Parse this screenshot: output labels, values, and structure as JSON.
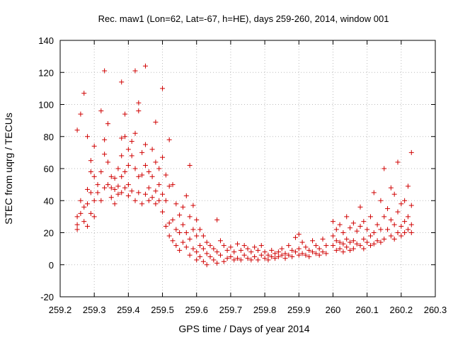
{
  "chart_data": {
    "type": "scatter",
    "title": "Rec. maw1 (Lon=62, Lat=-67, h=HE), days 259-260, 2014, window 001",
    "xlabel": "GPS time / Days of year 2014",
    "ylabel": "STEC from uqrg / TECUs",
    "xlim": [
      259.2,
      260.3
    ],
    "ylim": [
      -20,
      140
    ],
    "xticks": [
      "259.2",
      "259.3",
      "259.4",
      "259.5",
      "259.6",
      "259.7",
      "259.8",
      "259.9",
      "260",
      "260.1",
      "260.2",
      "260.3"
    ],
    "yticks": [
      "-20",
      "0",
      "20",
      "40",
      "60",
      "80",
      "100",
      "120",
      "140"
    ],
    "grid": true,
    "marker": "plus",
    "color": "#d00000",
    "series": [
      {
        "points": [
          [
            259.25,
            84
          ],
          [
            259.25,
            30
          ],
          [
            259.25,
            25
          ],
          [
            259.25,
            22
          ],
          [
            259.26,
            32
          ],
          [
            259.26,
            40
          ],
          [
            259.26,
            94
          ],
          [
            259.27,
            107
          ],
          [
            259.27,
            27
          ],
          [
            259.27,
            36
          ],
          [
            259.28,
            80
          ],
          [
            259.28,
            47
          ],
          [
            259.28,
            38
          ],
          [
            259.28,
            24
          ],
          [
            259.29,
            65
          ],
          [
            259.29,
            58
          ],
          [
            259.29,
            45
          ],
          [
            259.29,
            32
          ],
          [
            259.3,
            74
          ],
          [
            259.3,
            55
          ],
          [
            259.3,
            40
          ],
          [
            259.3,
            30
          ],
          [
            259.31,
            50
          ],
          [
            259.31,
            45
          ],
          [
            259.32,
            96
          ],
          [
            259.32,
            58
          ],
          [
            259.32,
            40
          ],
          [
            259.33,
            121
          ],
          [
            259.33,
            78
          ],
          [
            259.33,
            69
          ],
          [
            259.33,
            48
          ],
          [
            259.34,
            88
          ],
          [
            259.34,
            64
          ],
          [
            259.34,
            50
          ],
          [
            259.35,
            55
          ],
          [
            259.35,
            48
          ],
          [
            259.35,
            42
          ],
          [
            259.36,
            54
          ],
          [
            259.36,
            47
          ],
          [
            259.36,
            38
          ],
          [
            259.37,
            60
          ],
          [
            259.37,
            49
          ],
          [
            259.37,
            44
          ],
          [
            259.38,
            114
          ],
          [
            259.38,
            79
          ],
          [
            259.38,
            68
          ],
          [
            259.38,
            55
          ],
          [
            259.38,
            45
          ],
          [
            259.39,
            94
          ],
          [
            259.39,
            80
          ],
          [
            259.39,
            58
          ],
          [
            259.39,
            48
          ],
          [
            259.4,
            72
          ],
          [
            259.4,
            62
          ],
          [
            259.4,
            50
          ],
          [
            259.4,
            43
          ],
          [
            259.41,
            77
          ],
          [
            259.41,
            68
          ],
          [
            259.41,
            46
          ],
          [
            259.42,
            121
          ],
          [
            259.42,
            82
          ],
          [
            259.42,
            60
          ],
          [
            259.42,
            40
          ],
          [
            259.43,
            101
          ],
          [
            259.43,
            96
          ],
          [
            259.43,
            55
          ],
          [
            259.43,
            45
          ],
          [
            259.44,
            70
          ],
          [
            259.44,
            56
          ],
          [
            259.44,
            38
          ],
          [
            259.45,
            124
          ],
          [
            259.45,
            75
          ],
          [
            259.45,
            62
          ],
          [
            259.45,
            44
          ],
          [
            259.46,
            58
          ],
          [
            259.46,
            48
          ],
          [
            259.46,
            40
          ],
          [
            259.47,
            72
          ],
          [
            259.47,
            55
          ],
          [
            259.47,
            42
          ],
          [
            259.48,
            89
          ],
          [
            259.48,
            64
          ],
          [
            259.48,
            46
          ],
          [
            259.48,
            38
          ],
          [
            259.49,
            60
          ],
          [
            259.49,
            50
          ],
          [
            259.49,
            40
          ],
          [
            259.5,
            110
          ],
          [
            259.5,
            67
          ],
          [
            259.5,
            44
          ],
          [
            259.5,
            33
          ],
          [
            259.51,
            56
          ],
          [
            259.51,
            40
          ],
          [
            259.51,
            24
          ],
          [
            259.52,
            78
          ],
          [
            259.52,
            49
          ],
          [
            259.52,
            26
          ],
          [
            259.52,
            18
          ],
          [
            259.53,
            50
          ],
          [
            259.53,
            28
          ],
          [
            259.53,
            15
          ],
          [
            259.54,
            38
          ],
          [
            259.54,
            22
          ],
          [
            259.54,
            12
          ],
          [
            259.55,
            31
          ],
          [
            259.55,
            20
          ],
          [
            259.55,
            9
          ],
          [
            259.56,
            36
          ],
          [
            259.56,
            25
          ],
          [
            259.56,
            14
          ],
          [
            259.57,
            43
          ],
          [
            259.57,
            20
          ],
          [
            259.57,
            11
          ],
          [
            259.58,
            62
          ],
          [
            259.58,
            30
          ],
          [
            259.58,
            16
          ],
          [
            259.58,
            6
          ],
          [
            259.59,
            37
          ],
          [
            259.59,
            22
          ],
          [
            259.59,
            10
          ],
          [
            259.6,
            28
          ],
          [
            259.6,
            18
          ],
          [
            259.6,
            8
          ],
          [
            259.6,
            3
          ],
          [
            259.61,
            22
          ],
          [
            259.61,
            12
          ],
          [
            259.61,
            5
          ],
          [
            259.62,
            18
          ],
          [
            259.62,
            10
          ],
          [
            259.62,
            2
          ],
          [
            259.63,
            14
          ],
          [
            259.63,
            7
          ],
          [
            259.63,
            0
          ],
          [
            259.64,
            12
          ],
          [
            259.64,
            5
          ],
          [
            259.65,
            10
          ],
          [
            259.65,
            3
          ],
          [
            259.66,
            28
          ],
          [
            259.66,
            8
          ],
          [
            259.66,
            1
          ],
          [
            259.67,
            15
          ],
          [
            259.67,
            6
          ],
          [
            259.68,
            12
          ],
          [
            259.68,
            2
          ],
          [
            259.69,
            9
          ],
          [
            259.69,
            4
          ],
          [
            259.7,
            11
          ],
          [
            259.7,
            5
          ],
          [
            259.71,
            8
          ],
          [
            259.71,
            3
          ],
          [
            259.72,
            13
          ],
          [
            259.72,
            4
          ],
          [
            259.73,
            9
          ],
          [
            259.73,
            3
          ],
          [
            259.74,
            12
          ],
          [
            259.74,
            6
          ],
          [
            259.75,
            10
          ],
          [
            259.75,
            4
          ],
          [
            259.76,
            8
          ],
          [
            259.76,
            3
          ],
          [
            259.77,
            11
          ],
          [
            259.77,
            5
          ],
          [
            259.78,
            9
          ],
          [
            259.78,
            3
          ],
          [
            259.79,
            12
          ],
          [
            259.79,
            6
          ],
          [
            259.8,
            8
          ],
          [
            259.8,
            4
          ],
          [
            259.81,
            6
          ],
          [
            259.81,
            3
          ],
          [
            259.82,
            9
          ],
          [
            259.82,
            5
          ],
          [
            259.83,
            7
          ],
          [
            259.83,
            4
          ],
          [
            259.84,
            8
          ],
          [
            259.84,
            5
          ],
          [
            259.85,
            10
          ],
          [
            259.85,
            6
          ],
          [
            259.86,
            7
          ],
          [
            259.86,
            4
          ],
          [
            259.87,
            12
          ],
          [
            259.87,
            6
          ],
          [
            259.88,
            9
          ],
          [
            259.88,
            5
          ],
          [
            259.89,
            17
          ],
          [
            259.89,
            8
          ],
          [
            259.9,
            19
          ],
          [
            259.9,
            10
          ],
          [
            259.9,
            6
          ],
          [
            259.91,
            14
          ],
          [
            259.91,
            7
          ],
          [
            259.92,
            11
          ],
          [
            259.92,
            6
          ],
          [
            259.93,
            9
          ],
          [
            259.93,
            5
          ],
          [
            259.94,
            15
          ],
          [
            259.94,
            8
          ],
          [
            259.95,
            12
          ],
          [
            259.95,
            7
          ],
          [
            259.96,
            10
          ],
          [
            259.96,
            6
          ],
          [
            259.97,
            16
          ],
          [
            259.97,
            8
          ],
          [
            259.98,
            12
          ],
          [
            259.98,
            7
          ],
          [
            260.0,
            27
          ],
          [
            260.0,
            18
          ],
          [
            260.0,
            12
          ],
          [
            260.01,
            22
          ],
          [
            260.01,
            15
          ],
          [
            260.01,
            9
          ],
          [
            260.02,
            25
          ],
          [
            260.02,
            14
          ],
          [
            260.02,
            10
          ],
          [
            260.03,
            20
          ],
          [
            260.03,
            13
          ],
          [
            260.03,
            8
          ],
          [
            260.04,
            30
          ],
          [
            260.04,
            16
          ],
          [
            260.04,
            11
          ],
          [
            260.05,
            23
          ],
          [
            260.05,
            14
          ],
          [
            260.05,
            9
          ],
          [
            260.06,
            26
          ],
          [
            260.06,
            15
          ],
          [
            260.06,
            10
          ],
          [
            260.07,
            21
          ],
          [
            260.07,
            13
          ],
          [
            260.08,
            36
          ],
          [
            260.08,
            24
          ],
          [
            260.08,
            12
          ],
          [
            260.09,
            27
          ],
          [
            260.09,
            16
          ],
          [
            260.09,
            10
          ],
          [
            260.1,
            22
          ],
          [
            260.1,
            14
          ],
          [
            260.11,
            30
          ],
          [
            260.11,
            18
          ],
          [
            260.11,
            12
          ],
          [
            260.12,
            45
          ],
          [
            260.12,
            20
          ],
          [
            260.12,
            13
          ],
          [
            260.13,
            25
          ],
          [
            260.13,
            15
          ],
          [
            260.14,
            40
          ],
          [
            260.14,
            22
          ],
          [
            260.14,
            14
          ],
          [
            260.15,
            60
          ],
          [
            260.15,
            30
          ],
          [
            260.15,
            16
          ],
          [
            260.16,
            35
          ],
          [
            260.16,
            22
          ],
          [
            260.17,
            48
          ],
          [
            260.17,
            28
          ],
          [
            260.17,
            18
          ],
          [
            260.18,
            44
          ],
          [
            260.18,
            25
          ],
          [
            260.18,
            16
          ],
          [
            260.19,
            64
          ],
          [
            260.19,
            33
          ],
          [
            260.19,
            20
          ],
          [
            260.2,
            38
          ],
          [
            260.2,
            24
          ],
          [
            260.2,
            18
          ],
          [
            260.21,
            40
          ],
          [
            260.21,
            27
          ],
          [
            260.21,
            20
          ],
          [
            260.22,
            49
          ],
          [
            260.22,
            30
          ],
          [
            260.22,
            22
          ],
          [
            260.23,
            70
          ],
          [
            260.23,
            37
          ],
          [
            260.23,
            25
          ],
          [
            260.23,
            20
          ]
        ]
      }
    ]
  }
}
